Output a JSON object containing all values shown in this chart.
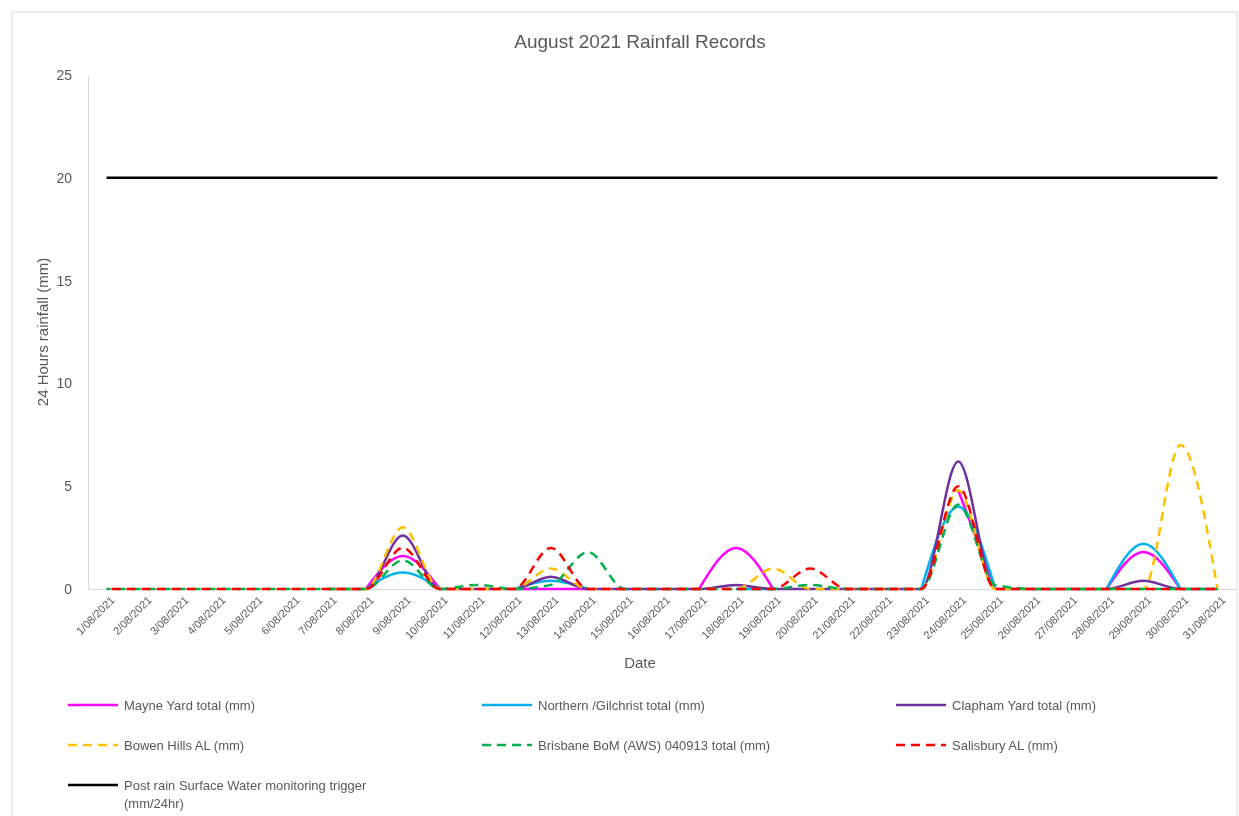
{
  "chart_data": {
    "type": "line",
    "title": "August 2021 Rainfall Records",
    "xlabel": "Date",
    "ylabel": "24 Hours rainfall (mm)",
    "categories": [
      "1/08/2021",
      "2/08/2021",
      "3/08/2021",
      "4/08/2021",
      "5/08/2021",
      "6/08/2021",
      "7/08/2021",
      "8/08/2021",
      "9/08/2021",
      "10/08/2021",
      "11/08/2021",
      "12/08/2021",
      "13/08/2021",
      "14/08/2021",
      "15/08/2021",
      "16/08/2021",
      "17/08/2021",
      "18/08/2021",
      "19/08/2021",
      "20/08/2021",
      "21/08/2021",
      "22/08/2021",
      "23/08/2021",
      "24/08/2021",
      "25/08/2021",
      "26/08/2021",
      "27/08/2021",
      "28/08/2021",
      "29/08/2021",
      "30/08/2021",
      "31/08/2021"
    ],
    "ylim": [
      0,
      25
    ],
    "yticks": [
      0,
      5,
      10,
      15,
      20,
      25
    ],
    "grid": false,
    "legend": "bottom",
    "marker": "none",
    "series": [
      {
        "name": "Mayne Yard total (mm)",
        "color": "#ff00ff",
        "line_style": "solid",
        "values": [
          null,
          null,
          null,
          null,
          null,
          null,
          null,
          0,
          1.6,
          0,
          null,
          0,
          0,
          0,
          null,
          null,
          0,
          2.0,
          0,
          null,
          null,
          null,
          null,
          4.8,
          0,
          null,
          null,
          0,
          1.8,
          0,
          null
        ]
      },
      {
        "name": "Northern  /Gilchrist total (mm)",
        "color": "#00b0f0",
        "line_style": "solid",
        "values": [
          null,
          null,
          null,
          null,
          null,
          null,
          null,
          0,
          0.8,
          0,
          null,
          0,
          0.4,
          0,
          null,
          null,
          null,
          0,
          0,
          null,
          null,
          null,
          0,
          4.0,
          0,
          null,
          null,
          0,
          2.2,
          0,
          null
        ]
      },
      {
        "name": "Clapham Yard total (mm)",
        "color": "#7030a0",
        "line_style": "solid",
        "values": [
          null,
          null,
          null,
          null,
          null,
          null,
          0,
          0,
          2.6,
          0,
          0,
          0,
          0.6,
          0,
          0,
          0,
          0,
          0.2,
          0,
          0,
          0,
          0,
          0,
          6.2,
          0,
          0,
          0,
          0,
          0.4,
          0,
          0
        ]
      },
      {
        "name": "Bowen Hills AL (mm)",
        "color": "#ffc000",
        "line_style": "dashed",
        "values": [
          null,
          null,
          null,
          null,
          null,
          null,
          0,
          0,
          3.0,
          0,
          0,
          0,
          1.0,
          0,
          0,
          0,
          0,
          0,
          1.0,
          0,
          0,
          0,
          0,
          4.8,
          0,
          0,
          0,
          0,
          0,
          7.0,
          0
        ]
      },
      {
        "name": "Brisbane BoM (AWS) 040913 total (mm)",
        "color": "#00b050",
        "line_style": "dashed",
        "values": [
          0,
          0,
          0,
          0,
          0,
          0,
          0,
          0,
          1.4,
          0,
          0.2,
          0,
          0.2,
          1.8,
          0,
          0,
          0,
          0,
          0,
          0.2,
          0,
          0,
          0,
          4.1,
          0.2,
          0,
          0,
          0,
          0,
          0,
          0
        ]
      },
      {
        "name": "Salisbury AL (mm)",
        "color": "#ff0000",
        "line_style": "dashed",
        "values": [
          0,
          0,
          0,
          0,
          0,
          0,
          0,
          0,
          2.0,
          0,
          0,
          0,
          2.0,
          0,
          0,
          0,
          0,
          0,
          0,
          1.0,
          0,
          0,
          0,
          5.0,
          0,
          0,
          0,
          0,
          0,
          0,
          0
        ]
      },
      {
        "name": "Post rain Surface Water monitoring trigger (mm/24hr)",
        "color": "#000000",
        "line_style": "solid",
        "values": [
          20,
          20,
          20,
          20,
          20,
          20,
          20,
          20,
          20,
          20,
          20,
          20,
          20,
          20,
          20,
          20,
          20,
          20,
          20,
          20,
          20,
          20,
          20,
          20,
          20,
          20,
          20,
          20,
          20,
          20,
          20
        ]
      }
    ]
  }
}
